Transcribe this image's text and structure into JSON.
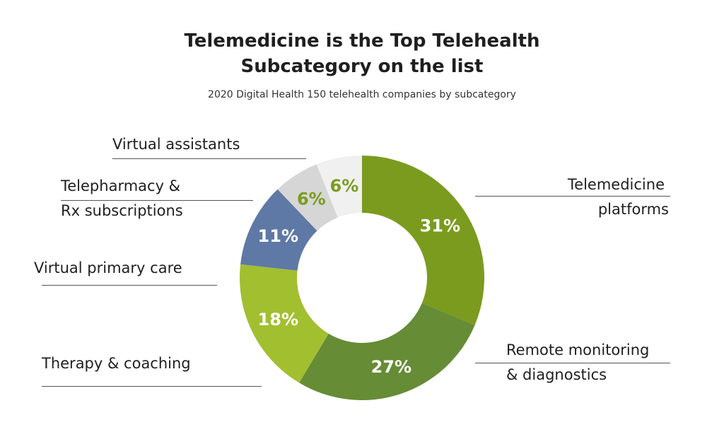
{
  "header": {
    "title_line1": "Telemedicine is the Top Telehealth",
    "title_line2": "Subcategory on the list",
    "subtitle": "2020 Digital Health 150 telehealth companies by subcategory"
  },
  "labels": {
    "telemedicine_line1": "Telemedicine",
    "telemedicine_line2": "platforms",
    "remote_line1": "Remote monitoring",
    "remote_line2": "& diagnostics",
    "therapy": "Therapy & coaching",
    "primary_care": "Virtual primary care",
    "telepharmacy_line1": "Telepharmacy &",
    "telepharmacy_line2": "Rx subscriptions",
    "assistants": "Virtual assistants"
  },
  "chart_data": {
    "type": "pie",
    "donut": true,
    "title": "Telemedicine is the Top Telehealth Subcategory on the list",
    "subtitle": "2020 Digital Health 150 telehealth companies by subcategory",
    "start_direction": "12 o'clock, clockwise",
    "slices": [
      {
        "name": "Telemedicine platforms",
        "value": 31,
        "label": "31%",
        "color": "#7b9b1f",
        "label_color": "#ffffff"
      },
      {
        "name": "Remote monitoring & diagnostics",
        "value": 27,
        "label": "27%",
        "color": "#668c36",
        "label_color": "#ffffff"
      },
      {
        "name": "Therapy & coaching",
        "value": 18,
        "label": "18%",
        "color": "#a2bf30",
        "label_color": "#ffffff"
      },
      {
        "name": "Virtual primary care",
        "value": 11,
        "label": "11%",
        "color": "#5f79a6",
        "label_color": "#ffffff"
      },
      {
        "name": "Telepharmacy & Rx subscriptions",
        "value": 6,
        "label": "6%",
        "color": "#d6d6d6",
        "label_color": "#7b9b1f"
      },
      {
        "name": "Virtual assistants",
        "value": 6,
        "label": "6%",
        "color": "#f0f0f0",
        "label_color": "#7b9b1f"
      }
    ]
  }
}
